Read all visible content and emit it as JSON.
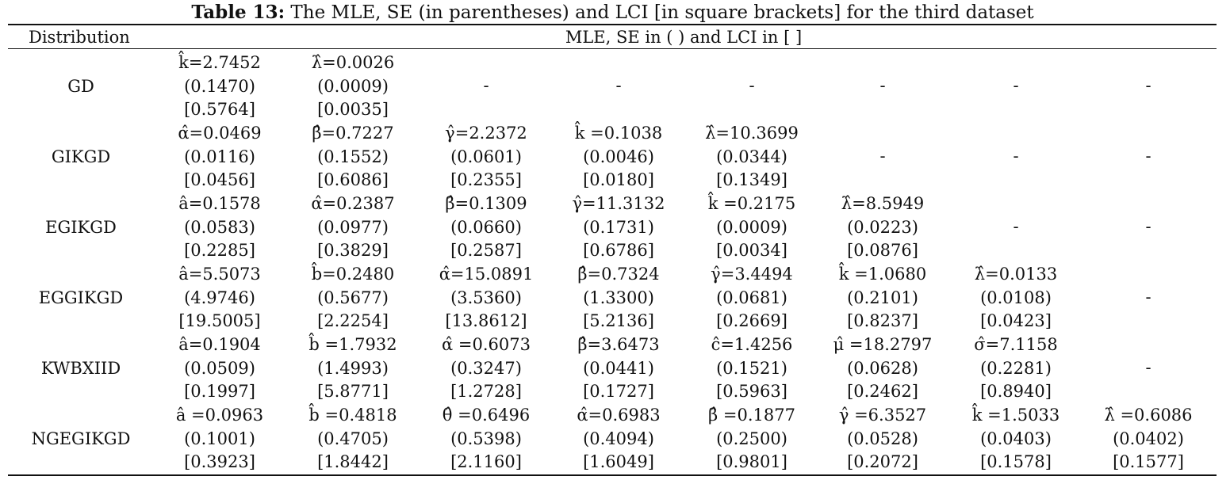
{
  "caption": {
    "label": "Table 13:",
    "text": " The MLE, SE (in parentheses) and LCI [in square brackets] for the third dataset"
  },
  "header": {
    "distribution": "Distribution",
    "mle": "MLE, SE in ( ) and LCI in [ ]"
  },
  "rows": [
    {
      "name": "GD",
      "cells": [
        {
          "mle": "k̂=2.7452",
          "se": "(0.1470)",
          "lci": "[0.5764]"
        },
        {
          "mle": "λ̂=0.0026",
          "se": "(0.0009)",
          "lci": "[0.0035]"
        },
        {
          "dash": "-"
        },
        {
          "dash": "-"
        },
        {
          "dash": "-"
        },
        {
          "dash": "-"
        },
        {
          "dash": "-"
        },
        {
          "dash": "-"
        }
      ]
    },
    {
      "name": "GIKGD",
      "cells": [
        {
          "mle": "α̂=0.0469",
          "se": "(0.0116)",
          "lci": "[0.0456]"
        },
        {
          "mle": "β̂=0.7227",
          "se": "(0.1552)",
          "lci": "[0.6086]"
        },
        {
          "mle": "γ̂=2.2372",
          "se": "(0.0601)",
          "lci": "[0.2355]"
        },
        {
          "mle": "k̂ =0.1038",
          "se": "(0.0046)",
          "lci": "[0.0180]"
        },
        {
          "mle": "λ̂=10.3699",
          "se": "(0.0344)",
          "lci": "[0.1349]"
        },
        {
          "dash": "-"
        },
        {
          "dash": "-"
        },
        {
          "dash": "-"
        }
      ]
    },
    {
      "name": "EGIKGD",
      "cells": [
        {
          "mle": "â=0.1578",
          "se": "(0.0583)",
          "lci": "[0.2285]"
        },
        {
          "mle": "α̂=0.2387",
          "se": "(0.0977)",
          "lci": "[0.3829]"
        },
        {
          "mle": "β̂=0.1309",
          "se": "(0.0660)",
          "lci": "[0.2587]"
        },
        {
          "mle": "γ̂=11.3132",
          "se": "(0.1731)",
          "lci": "[0.6786]"
        },
        {
          "mle": "k̂ =0.2175",
          "se": "(0.0009)",
          "lci": "[0.0034]"
        },
        {
          "mle": "λ̂=8.5949",
          "se": "(0.0223)",
          "lci": "[0.0876]"
        },
        {
          "dash": "-"
        },
        {
          "dash": "-"
        }
      ]
    },
    {
      "name": "EGGIKGD",
      "cells": [
        {
          "mle": "â=5.5073",
          "se": "(4.9746)",
          "lci": "[19.5005]"
        },
        {
          "mle": "b̂=0.2480",
          "se": "(0.5677)",
          "lci": "[2.2254]"
        },
        {
          "mle": "α̂=15.0891",
          "se": "(3.5360)",
          "lci": "[13.8612]"
        },
        {
          "mle": "β̂=0.7324",
          "se": "(1.3300)",
          "lci": "[5.2136]"
        },
        {
          "mle": "γ̂=3.4494",
          "se": "(0.0681)",
          "lci": "[0.2669]"
        },
        {
          "mle": "k̂ =1.0680",
          "se": "(0.2101)",
          "lci": "[0.8237]"
        },
        {
          "mle": "λ̂=0.0133",
          "se": "(0.0108)",
          "lci": "[0.0423]"
        },
        {
          "dash": "-"
        }
      ]
    },
    {
      "name": "KWBXIID",
      "cells": [
        {
          "mle": "â=0.1904",
          "se": "(0.0509)",
          "lci": "[0.1997]"
        },
        {
          "mle": "b̂ =1.7932",
          "se": "(1.4993)",
          "lci": "[5.8771]"
        },
        {
          "mle": "α̂ =0.6073",
          "se": "(0.3247)",
          "lci": "[1.2728]"
        },
        {
          "mle": "β̂=3.6473",
          "se": "(0.0441)",
          "lci": "[0.1727]"
        },
        {
          "mle": "ĉ=1.4256",
          "se": "(0.1521)",
          "lci": "[0.5963]"
        },
        {
          "mle": "μ̂ =18.2797",
          "se": "(0.0628)",
          "lci": "[0.2462]"
        },
        {
          "mle": "σ̂=7.1158",
          "se": "(0.2281)",
          "lci": "[0.8940]"
        },
        {
          "dash": "-"
        }
      ]
    },
    {
      "name": "NGEGIKGD",
      "cells": [
        {
          "mle": "â =0.0963",
          "se": "(0.1001)",
          "lci": "[0.3923]"
        },
        {
          "mle": "b̂ =0.4818",
          "se": "(0.4705)",
          "lci": "[1.8442]"
        },
        {
          "mle": "θ̂ =0.6496",
          "se": "(0.5398)",
          "lci": "[2.1160]"
        },
        {
          "mle": "α̂=0.6983",
          "se": "(0.4094)",
          "lci": "[1.6049]"
        },
        {
          "mle": "β̂ =0.1877",
          "se": "(0.2500)",
          "lci": "[0.9801]"
        },
        {
          "mle": "γ̂ =6.3527",
          "se": "(0.0528)",
          "lci": "[0.2072]"
        },
        {
          "mle": "k̂ =1.5033",
          "se": "(0.0403)",
          "lci": "[0.1578]"
        },
        {
          "mle": "λ̂ =0.6086",
          "se": "(0.0402)",
          "lci": "[0.1577]"
        }
      ]
    }
  ]
}
